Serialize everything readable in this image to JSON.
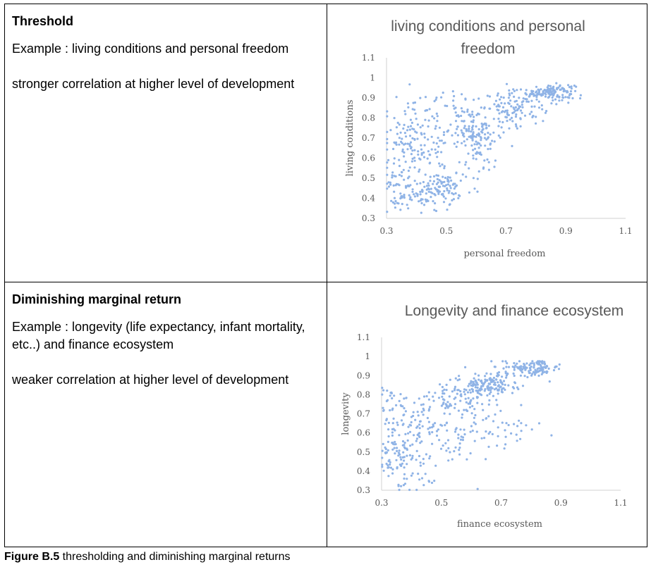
{
  "rows": [
    {
      "heading": "Threshold",
      "example": "Example : living conditions and personal freedom",
      "note": "stronger correlation at higher level of development"
    },
    {
      "heading": "Diminishing marginal return",
      "example": "Example : longevity (life expectancy, infant mortality, etc..) and finance ecosystem",
      "note": "weaker correlation at higher level of development"
    }
  ],
  "caption": {
    "label": "Figure B.5",
    "text": " thresholding and diminishing marginal returns"
  },
  "point_color": "#8fb3e6",
  "chart_data": [
    {
      "type": "scatter",
      "title": "living conditions and personal freedom",
      "title_lines": [
        "living conditions and personal",
        "freedom"
      ],
      "xlabel": "personal freedom",
      "ylabel": "living conditions",
      "xlim": [
        0.3,
        1.1
      ],
      "ylim": [
        0.3,
        1.1
      ],
      "xticks": [
        "0.3",
        "0.5",
        "0.7",
        "0.9",
        "1.1"
      ],
      "yticks": [
        "0.3",
        "0.4",
        "0.5",
        "0.6",
        "0.7",
        "0.8",
        "0.9",
        "1",
        "1.1"
      ],
      "grid": false,
      "clusters": [
        {
          "cx": 0.85,
          "cy": 0.93,
          "sx": 0.04,
          "sy": 0.02,
          "n": 140
        },
        {
          "cx": 0.73,
          "cy": 0.85,
          "sx": 0.05,
          "sy": 0.04,
          "n": 110
        },
        {
          "cx": 0.6,
          "cy": 0.75,
          "sx": 0.04,
          "sy": 0.05,
          "n": 120
        },
        {
          "cx": 0.47,
          "cy": 0.44,
          "sx": 0.05,
          "sy": 0.05,
          "n": 130
        },
        {
          "cx": 0.36,
          "cy": 0.7,
          "sx": 0.04,
          "sy": 0.1,
          "n": 80
        },
        {
          "cx": 0.34,
          "cy": 0.45,
          "sx": 0.03,
          "sy": 0.07,
          "n": 55
        },
        {
          "cx": 0.45,
          "cy": 0.7,
          "sx": 0.05,
          "sy": 0.09,
          "n": 70
        },
        {
          "cx": 0.62,
          "cy": 0.6,
          "sx": 0.03,
          "sy": 0.05,
          "n": 35
        },
        {
          "cx": 0.5,
          "cy": 0.88,
          "sx": 0.07,
          "sy": 0.04,
          "n": 25
        }
      ]
    },
    {
      "type": "scatter",
      "title": "Longevity and finance ecosystem",
      "title_lines": [
        "Longevity and finance ecosystem"
      ],
      "xlabel": "finance ecosystem",
      "ylabel": "longevity",
      "xlim": [
        0.3,
        1.1
      ],
      "ylim": [
        0.3,
        1.1
      ],
      "xticks": [
        "0.3",
        "0.5",
        "0.7",
        "0.9",
        "1.1"
      ],
      "yticks": [
        "0.3",
        "0.4",
        "0.5",
        "0.6",
        "0.7",
        "0.8",
        "0.9",
        "1",
        "1.1"
      ],
      "grid": false,
      "clusters": [
        {
          "cx": 0.8,
          "cy": 0.94,
          "sx": 0.05,
          "sy": 0.02,
          "n": 130
        },
        {
          "cx": 0.65,
          "cy": 0.85,
          "sx": 0.05,
          "sy": 0.03,
          "n": 150
        },
        {
          "cx": 0.55,
          "cy": 0.78,
          "sx": 0.05,
          "sy": 0.05,
          "n": 70
        },
        {
          "cx": 0.45,
          "cy": 0.65,
          "sx": 0.05,
          "sy": 0.08,
          "n": 80
        },
        {
          "cx": 0.35,
          "cy": 0.5,
          "sx": 0.03,
          "sy": 0.1,
          "n": 90
        },
        {
          "cx": 0.33,
          "cy": 0.75,
          "sx": 0.03,
          "sy": 0.06,
          "n": 30
        },
        {
          "cx": 0.6,
          "cy": 0.6,
          "sx": 0.06,
          "sy": 0.08,
          "n": 60
        },
        {
          "cx": 0.72,
          "cy": 0.62,
          "sx": 0.04,
          "sy": 0.06,
          "n": 25
        },
        {
          "cx": 0.42,
          "cy": 0.4,
          "sx": 0.05,
          "sy": 0.05,
          "n": 30
        }
      ]
    }
  ]
}
